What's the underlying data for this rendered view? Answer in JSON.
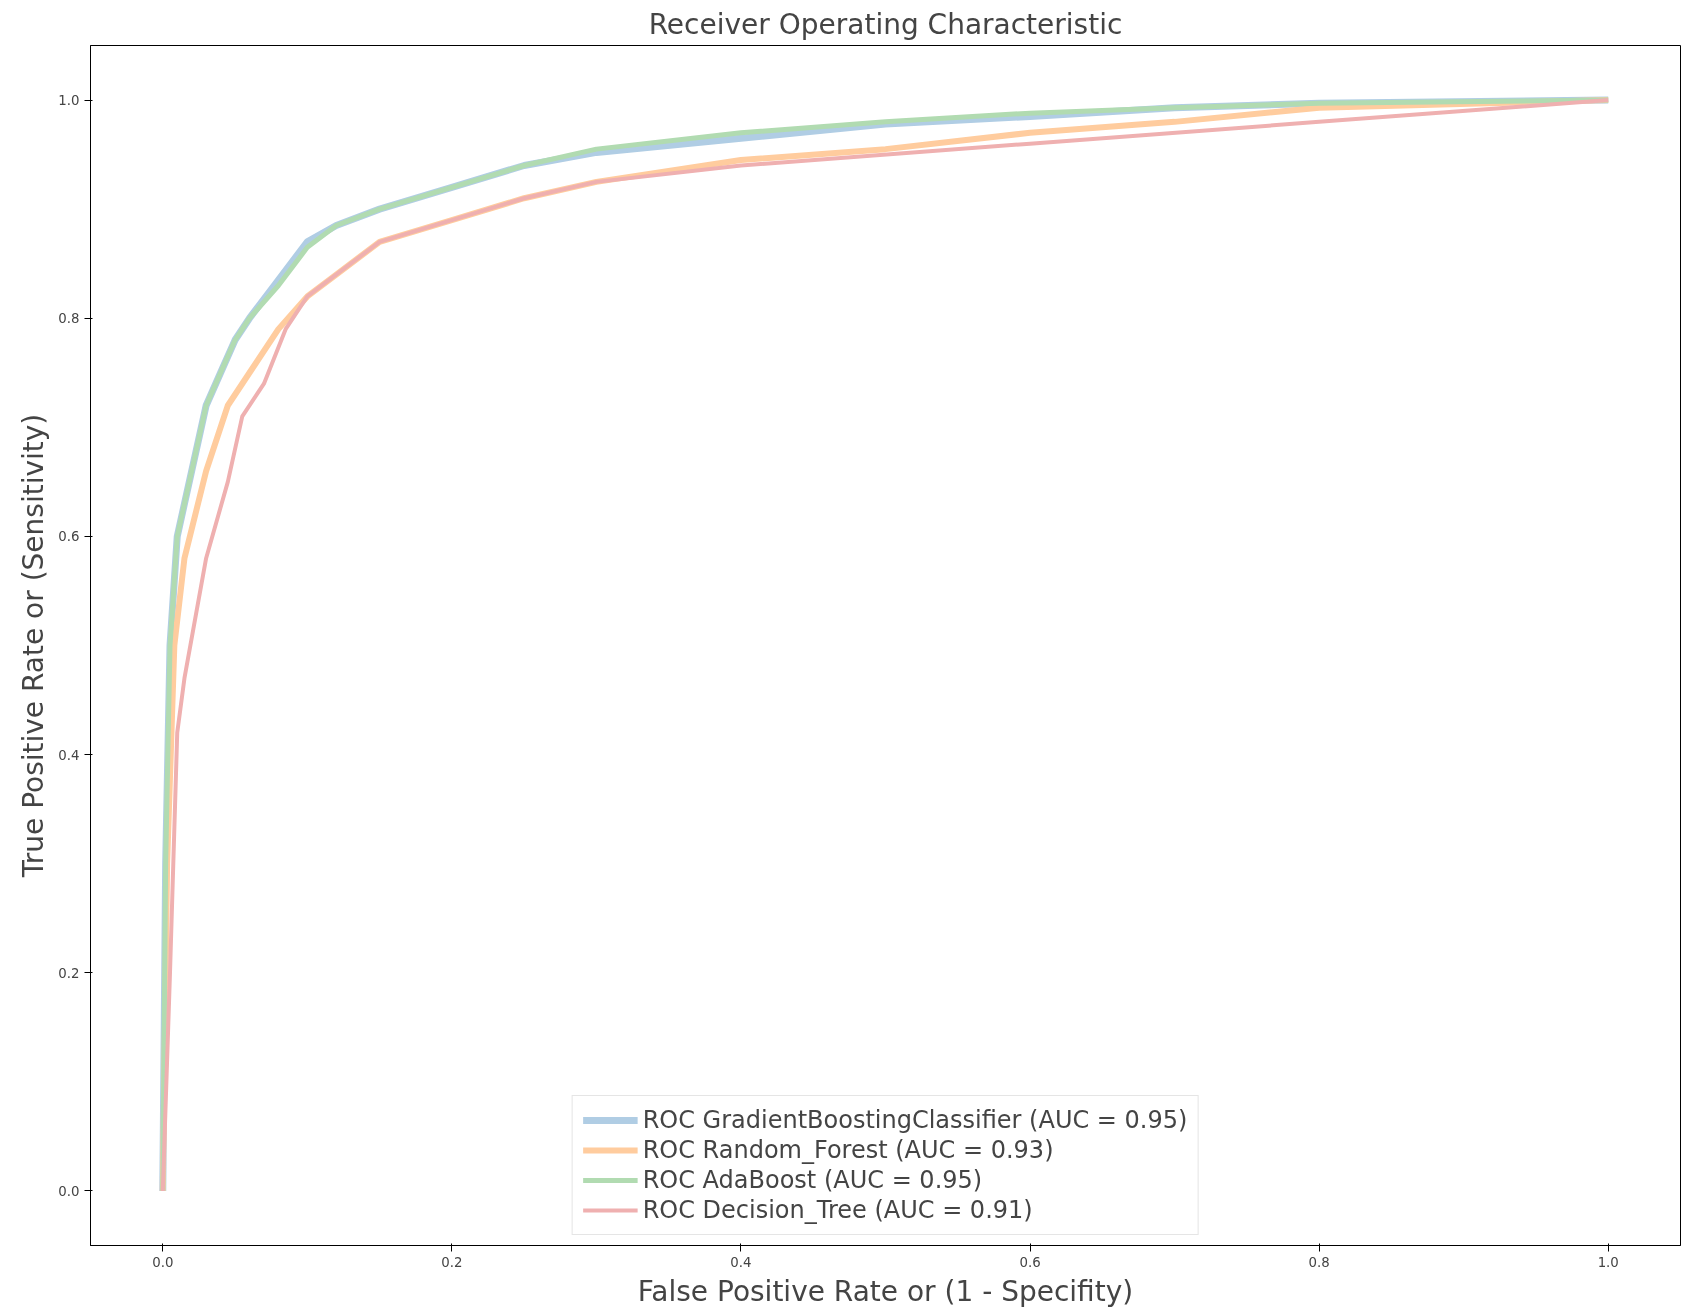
{
  "chart_data": {
    "type": "line",
    "title": "Receiver Operating Characteristic",
    "xlabel": "False Positive Rate or (1 - Specifity)",
    "ylabel": "True Positive Rate or (Sensitivity)",
    "xlim": [
      -0.05,
      1.05
    ],
    "ylim": [
      -0.05,
      1.05
    ],
    "xticks": [
      {
        "value": 0,
        "label": "0.0"
      },
      0.2,
      0.4,
      0.6,
      0.8,
      {
        "value": 1,
        "label": "1.0"
      }
    ],
    "yticks": [
      {
        "value": 0,
        "label": "0.0"
      },
      0.2,
      0.4,
      0.6,
      0.8,
      {
        "value": 1,
        "label": "1.0"
      }
    ],
    "grid": false,
    "legend": "bottom",
    "line_style": "solid",
    "marker": "none",
    "series": [
      {
        "name": "ROC GradientBoostingClassifier (AUC = 0.95)",
        "color": "#b0cde4",
        "x": [
          0,
          0.002,
          0.005,
          0.01,
          0.02,
          0.03,
          0.04,
          0.05,
          0.06,
          0.08,
          0.1,
          0.12,
          0.15,
          0.2,
          0.25,
          0.3,
          0.4,
          0.5,
          0.6,
          0.7,
          0.8,
          1.0
        ],
        "values": [
          0,
          0.3,
          0.5,
          0.6,
          0.66,
          0.72,
          0.75,
          0.78,
          0.8,
          0.835,
          0.87,
          0.885,
          0.9,
          0.92,
          0.94,
          0.952,
          0.965,
          0.978,
          0.985,
          0.993,
          0.997,
          1.0
        ]
      },
      {
        "name": "ROC Random_Forest (AUC = 0.93)",
        "color": "#ffcc9e",
        "x": [
          0,
          0.003,
          0.008,
          0.015,
          0.03,
          0.045,
          0.06,
          0.08,
          0.1,
          0.12,
          0.15,
          0.2,
          0.25,
          0.3,
          0.4,
          0.5,
          0.6,
          0.7,
          0.8,
          1.0
        ],
        "values": [
          0,
          0.3,
          0.5,
          0.58,
          0.66,
          0.72,
          0.75,
          0.79,
          0.82,
          0.84,
          0.87,
          0.89,
          0.91,
          0.925,
          0.945,
          0.955,
          0.97,
          0.98,
          0.993,
          1.0
        ]
      },
      {
        "name": "ROC AdaBoost (AUC = 0.95)",
        "color": "#b1dbb1",
        "x": [
          0,
          0.002,
          0.005,
          0.01,
          0.02,
          0.03,
          0.04,
          0.05,
          0.06,
          0.08,
          0.1,
          0.12,
          0.15,
          0.2,
          0.25,
          0.3,
          0.4,
          0.5,
          0.6,
          0.7,
          0.8,
          1.0
        ],
        "values": [
          0,
          0.3,
          0.5,
          0.6,
          0.66,
          0.72,
          0.75,
          0.78,
          0.8,
          0.83,
          0.865,
          0.885,
          0.9,
          0.92,
          0.94,
          0.955,
          0.97,
          0.98,
          0.988,
          0.993,
          0.997,
          1.0
        ]
      },
      {
        "name": "ROC Decision_Tree (AUC = 0.91)",
        "color": "#efb0b0",
        "x": [
          0,
          0.005,
          0.01,
          0.015,
          0.03,
          0.045,
          0.055,
          0.07,
          0.085,
          0.1,
          0.13,
          0.15,
          0.2,
          0.25,
          0.3,
          0.4,
          0.6,
          0.8,
          1.0
        ],
        "values": [
          0,
          0.2,
          0.42,
          0.47,
          0.58,
          0.65,
          0.71,
          0.74,
          0.79,
          0.82,
          0.85,
          0.87,
          0.89,
          0.91,
          0.925,
          0.94,
          0.96,
          0.98,
          1.0
        ]
      }
    ]
  }
}
